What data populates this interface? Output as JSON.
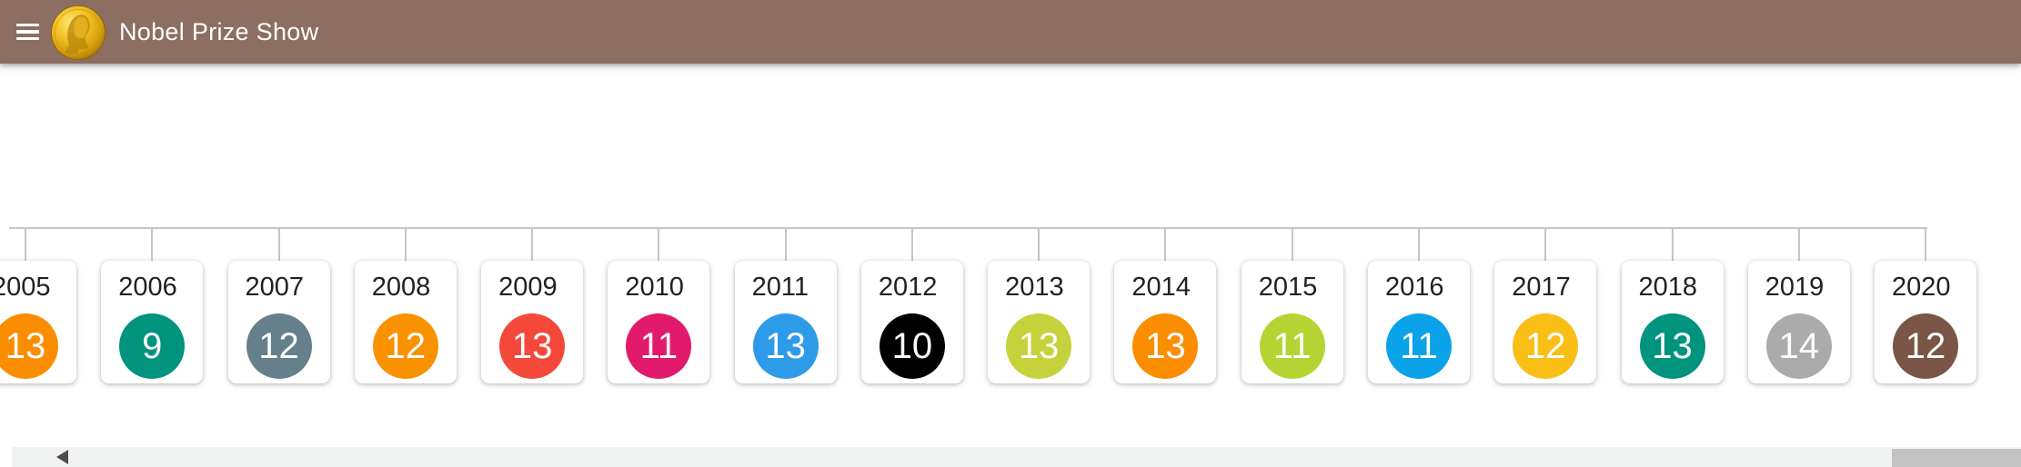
{
  "app_bar": {
    "title": "Nobel Prize Show",
    "background": "#8D6E63",
    "menu_icon": "hamburger-icon",
    "logo_icon": "nobel-medal-icon"
  },
  "timeline": {
    "line_color": "#C3C7C8",
    "years": [
      {
        "year": "2005",
        "count": "13",
        "color": "#FA8E00"
      },
      {
        "year": "2006",
        "count": "9",
        "color": "#00947E"
      },
      {
        "year": "2007",
        "count": "12",
        "color": "#66808B"
      },
      {
        "year": "2008",
        "count": "12",
        "color": "#FA9200"
      },
      {
        "year": "2009",
        "count": "13",
        "color": "#F4483B"
      },
      {
        "year": "2010",
        "count": "11",
        "color": "#E21A6C"
      },
      {
        "year": "2011",
        "count": "13",
        "color": "#2E9BE8"
      },
      {
        "year": "2012",
        "count": "10",
        "color": "#000000"
      },
      {
        "year": "2013",
        "count": "13",
        "color": "#C6D23C"
      },
      {
        "year": "2014",
        "count": "13",
        "color": "#FA8E00"
      },
      {
        "year": "2015",
        "count": "11",
        "color": "#B5D433"
      },
      {
        "year": "2016",
        "count": "11",
        "color": "#0AA2E8"
      },
      {
        "year": "2017",
        "count": "12",
        "color": "#F9BF17"
      },
      {
        "year": "2018",
        "count": "13",
        "color": "#00947E"
      },
      {
        "year": "2019",
        "count": "14",
        "color": "#ABABAB"
      },
      {
        "year": "2020",
        "count": "12",
        "color": "#7B5546"
      }
    ]
  },
  "scrollbar": {
    "orientation": "horizontal",
    "left_arrow_icon": "triangle-left-icon",
    "track_color": "#F0F1F1",
    "thumb_color": "#C2C2C2"
  }
}
